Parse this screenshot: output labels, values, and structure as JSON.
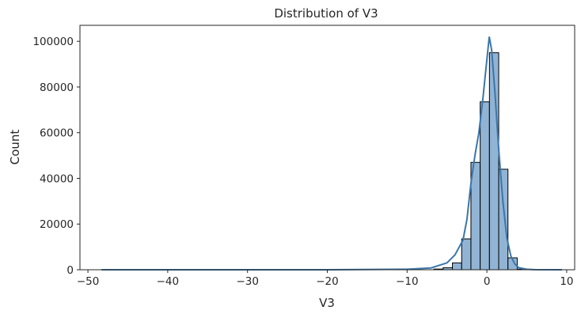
{
  "chart_data": {
    "type": "bar",
    "title": "Distribution of V3",
    "xlabel": "V3",
    "ylabel": "Count",
    "xlim": [
      -51,
      11
    ],
    "ylim": [
      0,
      107000
    ],
    "xticks": [
      -50,
      -40,
      -30,
      -20,
      -10,
      0,
      10
    ],
    "xtick_labels": [
      "−50",
      "−40",
      "−30",
      "−20",
      "−10",
      "0",
      "10"
    ],
    "yticks": [
      0,
      20000,
      40000,
      60000,
      80000,
      100000
    ],
    "ytick_labels": [
      "0",
      "20000",
      "40000",
      "60000",
      "80000",
      "100000"
    ],
    "grid": false,
    "bar_color": "#92b4d4",
    "kde_color": "#3b76aa",
    "bins": [
      {
        "x0": -6.64,
        "x1": -5.48,
        "count": 300
      },
      {
        "x0": -5.48,
        "x1": -4.32,
        "count": 900
      },
      {
        "x0": -4.32,
        "x1": -3.16,
        "count": 3000
      },
      {
        "x0": -3.16,
        "x1": -2.0,
        "count": 13500
      },
      {
        "x0": -2.0,
        "x1": -0.84,
        "count": 47000
      },
      {
        "x0": -0.84,
        "x1": 0.32,
        "count": 73500
      },
      {
        "x0": 0.32,
        "x1": 1.48,
        "count": 95000
      },
      {
        "x0": 1.48,
        "x1": 2.64,
        "count": 44000
      },
      {
        "x0": 2.64,
        "x1": 3.8,
        "count": 5200
      },
      {
        "x0": 3.8,
        "x1": 4.96,
        "count": 250
      }
    ],
    "kde": {
      "x": [
        -48.3,
        -40,
        -30,
        -20,
        -10,
        -7,
        -5,
        -4,
        -3,
        -2.5,
        -2,
        -1.5,
        -1,
        -0.5,
        0,
        0.3,
        0.6,
        1,
        1.5,
        2,
        2.5,
        3,
        3.5,
        4,
        5,
        6,
        9.4
      ],
      "y": [
        0,
        0,
        0,
        0,
        200,
        800,
        3000,
        6500,
        13000,
        22000,
        38000,
        50000,
        60000,
        75000,
        92000,
        102000,
        96000,
        78000,
        52000,
        30000,
        14000,
        6000,
        2500,
        900,
        200,
        50,
        0
      ]
    }
  }
}
